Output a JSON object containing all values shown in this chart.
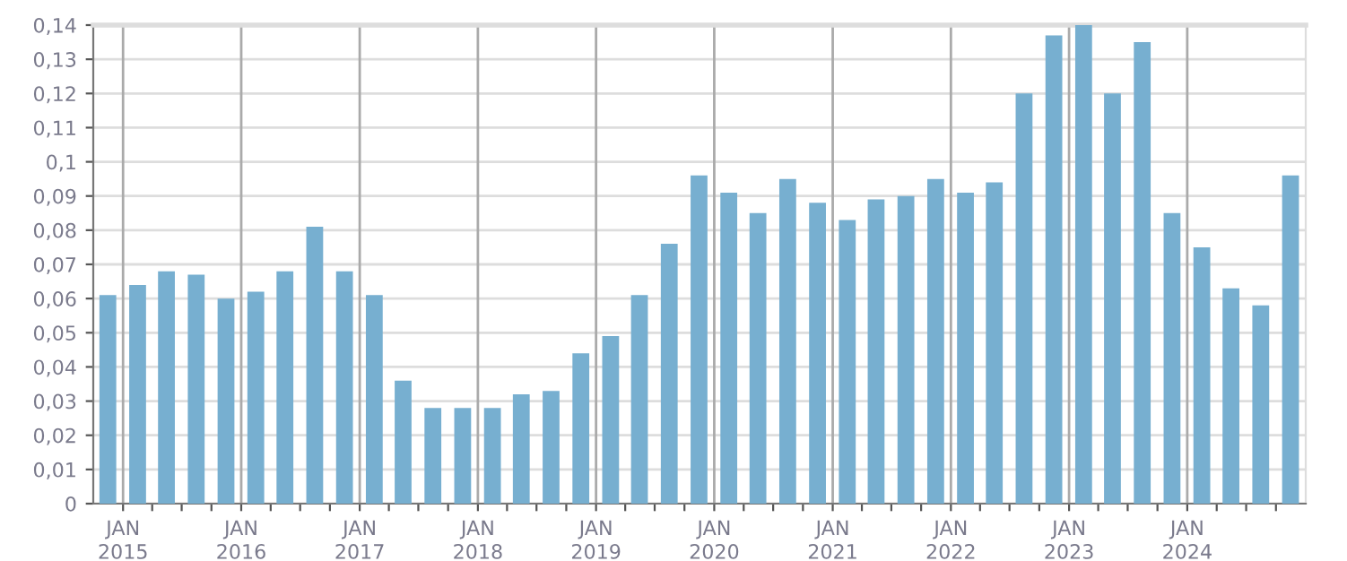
{
  "chart_data": {
    "type": "bar",
    "color": "#77afd0",
    "x": [
      "2014-11-15",
      "2015-02-15",
      "2015-05-15",
      "2015-08-15",
      "2015-11-15",
      "2016-02-15",
      "2016-05-15",
      "2016-08-15",
      "2016-11-15",
      "2017-02-15",
      "2017-05-15",
      "2017-08-15",
      "2017-11-15",
      "2018-02-15",
      "2018-05-15",
      "2018-08-15",
      "2018-11-15",
      "2019-02-15",
      "2019-05-15",
      "2019-08-15",
      "2019-11-15",
      "2020-02-15",
      "2020-05-15",
      "2020-08-15",
      "2020-11-15",
      "2021-02-15",
      "2021-05-15",
      "2021-08-15",
      "2021-11-15",
      "2022-02-15",
      "2022-05-15",
      "2022-08-15",
      "2022-11-15",
      "2023-02-15",
      "2023-05-15",
      "2023-08-15",
      "2023-11-15",
      "2024-02-15",
      "2024-05-15",
      "2024-08-15",
      "2024-11-15"
    ],
    "values": [
      0.061,
      0.064,
      0.068,
      0.067,
      0.06,
      0.062,
      0.068,
      0.081,
      0.068,
      0.061,
      0.036,
      0.028,
      0.028,
      0.028,
      0.032,
      0.033,
      0.044,
      0.049,
      0.061,
      0.076,
      0.096,
      0.091,
      0.085,
      0.095,
      0.088,
      0.083,
      0.089,
      0.09,
      0.095,
      0.091,
      0.094,
      0.12,
      0.137,
      0.14,
      0.12,
      0.135,
      0.085,
      0.075,
      0.063,
      0.058,
      0.096
    ],
    "xlim": [
      "2014-10-01",
      "2025-01-01"
    ],
    "xticks": [
      {
        "value": "2015-01-01",
        "label": "JAN\n2015"
      },
      {
        "value": "2015-04-01",
        "label": null
      },
      {
        "value": "2015-07-01",
        "label": null
      },
      {
        "value": "2015-10-01",
        "label": null
      },
      {
        "value": "2016-01-01",
        "label": "JAN\n2016"
      },
      {
        "value": "2016-04-01",
        "label": null
      },
      {
        "value": "2016-07-01",
        "label": null
      },
      {
        "value": "2016-10-01",
        "label": null
      },
      {
        "value": "2017-01-01",
        "label": "JAN\n2017"
      },
      {
        "value": "2017-04-01",
        "label": null
      },
      {
        "value": "2017-07-01",
        "label": null
      },
      {
        "value": "2017-10-01",
        "label": null
      },
      {
        "value": "2018-01-01",
        "label": "JAN\n2018"
      },
      {
        "value": "2018-04-01",
        "label": null
      },
      {
        "value": "2018-07-01",
        "label": null
      },
      {
        "value": "2018-10-01",
        "label": null
      },
      {
        "value": "2019-01-01",
        "label": "JAN\n2019"
      },
      {
        "value": "2019-04-01",
        "label": null
      },
      {
        "value": "2019-07-01",
        "label": null
      },
      {
        "value": "2019-10-01",
        "label": null
      },
      {
        "value": "2020-01-01",
        "label": "JAN\n2020"
      },
      {
        "value": "2020-04-01",
        "label": null
      },
      {
        "value": "2020-07-01",
        "label": null
      },
      {
        "value": "2020-10-01",
        "label": null
      },
      {
        "value": "2021-01-01",
        "label": "JAN\n2021"
      },
      {
        "value": "2021-04-01",
        "label": null
      },
      {
        "value": "2021-07-01",
        "label": null
      },
      {
        "value": "2021-10-01",
        "label": null
      },
      {
        "value": "2022-01-01",
        "label": "JAN\n2022"
      },
      {
        "value": "2022-04-01",
        "label": null
      },
      {
        "value": "2022-07-01",
        "label": null
      },
      {
        "value": "2022-10-01",
        "label": null
      },
      {
        "value": "2023-01-01",
        "label": "JAN\n2023"
      },
      {
        "value": "2023-04-01",
        "label": null
      },
      {
        "value": "2023-07-01",
        "label": null
      },
      {
        "value": "2023-10-01",
        "label": null
      },
      {
        "value": "2024-01-01",
        "label": "JAN\n2024"
      },
      {
        "value": "2024-04-01",
        "label": null
      },
      {
        "value": "2024-07-01",
        "label": null
      },
      {
        "value": "2024-10-01",
        "label": null
      }
    ],
    "ylim": [
      0,
      0.14
    ],
    "yticks": [
      {
        "value": 0,
        "label": "0"
      },
      {
        "value": 0.01,
        "label": "0,01"
      },
      {
        "value": 0.02,
        "label": "0,02"
      },
      {
        "value": 0.03,
        "label": "0,03"
      },
      {
        "value": 0.04,
        "label": "0,04"
      },
      {
        "value": 0.05,
        "label": "0,05"
      },
      {
        "value": 0.06,
        "label": "0,06"
      },
      {
        "value": 0.07,
        "label": "0,07"
      },
      {
        "value": 0.08,
        "label": "0,08"
      },
      {
        "value": 0.09,
        "label": "0,09"
      },
      {
        "value": 0.1,
        "label": "0,1"
      },
      {
        "value": 0.11,
        "label": "0,11"
      },
      {
        "value": 0.12,
        "label": "0,12"
      },
      {
        "value": 0.13,
        "label": "0,13"
      },
      {
        "value": 0.14,
        "label": "0,14"
      }
    ],
    "grid": true
  }
}
